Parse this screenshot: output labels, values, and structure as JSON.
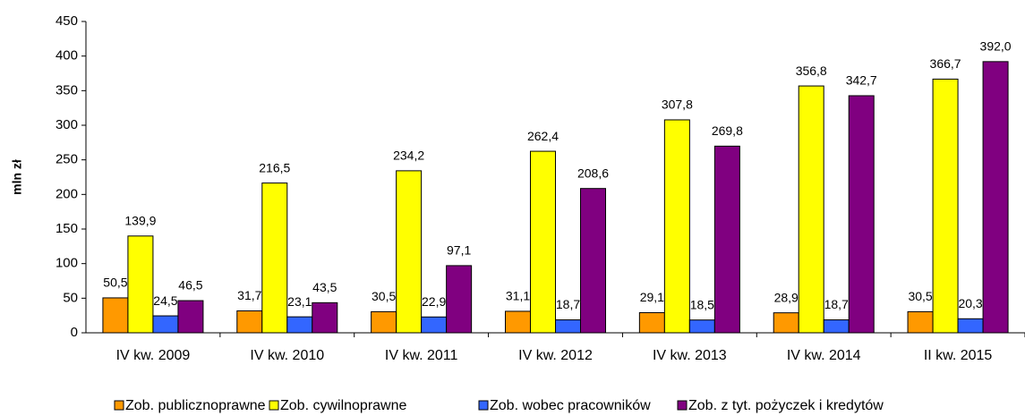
{
  "chart_data": {
    "type": "bar",
    "y_label": "mln zł",
    "categories": [
      "IV kw. 2009",
      "IV kw. 2010",
      "IV kw. 2011",
      "IV kw. 2012",
      "IV kw. 2013",
      "IV kw. 2014",
      "II kw. 2015"
    ],
    "series": [
      {
        "name": "Zob. publicznoprawne",
        "color": "#ff9900",
        "values": [
          50.5,
          31.7,
          30.5,
          31.1,
          29.1,
          28.9,
          30.5
        ],
        "value_labels": [
          "50,5",
          "31,7",
          "30,5",
          "31,1",
          "29,1",
          "28,9",
          "30,5"
        ]
      },
      {
        "name": "Zob. cywilnoprawne",
        "color": "#ffff00",
        "values": [
          139.9,
          216.5,
          234.2,
          262.4,
          307.8,
          356.8,
          366.7
        ],
        "value_labels": [
          "139,9",
          "216,5",
          "234,2",
          "262,4",
          "307,8",
          "356,8",
          "366,7"
        ]
      },
      {
        "name": "Zob. wobec pracowników",
        "color": "#3366ff",
        "values": [
          24.5,
          23.1,
          22.9,
          18.7,
          18.5,
          18.7,
          20.3
        ],
        "value_labels": [
          "24,5",
          "23,1",
          "22,9",
          "18,7",
          "18,5",
          "18,7",
          "20,3"
        ]
      },
      {
        "name": "Zob. z tyt. pożyczek i kredytów",
        "color": "#800080",
        "values": [
          46.5,
          43.5,
          97.1,
          208.6,
          269.8,
          342.7,
          392.0
        ],
        "value_labels": [
          "46,5",
          "43,5",
          "97,1",
          "208,6",
          "269,8",
          "342,7",
          "392,0"
        ]
      }
    ],
    "ylim": [
      0,
      450
    ],
    "yticks": [
      0,
      50,
      100,
      150,
      200,
      250,
      300,
      350,
      400,
      450
    ],
    "legend": "bottom"
  }
}
